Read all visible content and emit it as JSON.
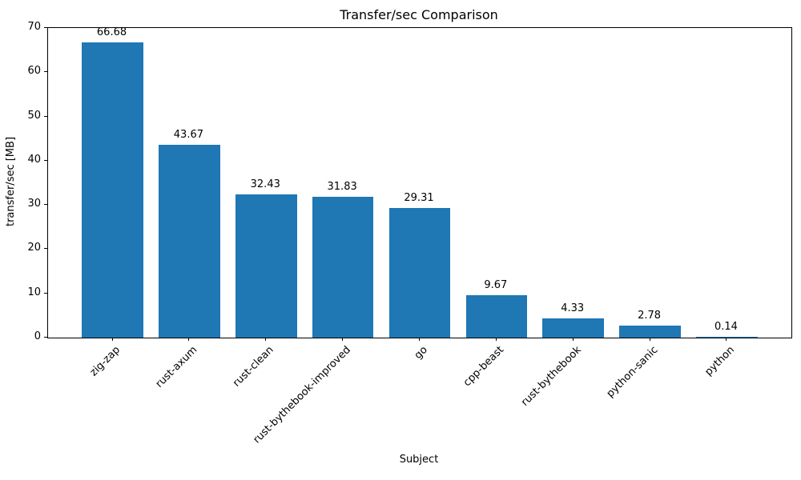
{
  "chart_data": {
    "type": "bar",
    "title": "Transfer/sec Comparison",
    "xlabel": "Subject",
    "ylabel": "transfer/sec [MB]",
    "categories": [
      "zig-zap",
      "rust-axum",
      "rust-clean",
      "rust-bythebook-improved",
      "go",
      "cpp-beast",
      "rust-bythebook",
      "python-sanic",
      "python"
    ],
    "values": [
      66.68,
      43.67,
      32.43,
      31.83,
      29.31,
      9.67,
      4.33,
      2.78,
      0.14
    ],
    "bar_value_labels": [
      "66.68",
      "43.67",
      "32.43",
      "31.83",
      "29.31",
      "9.67",
      "4.33",
      "2.78",
      "0.14"
    ],
    "ylim": [
      0,
      70
    ],
    "yticks": [
      0,
      10,
      20,
      30,
      40,
      50,
      60,
      70
    ],
    "bar_color": "#1f77b4",
    "axis_color": "#000000",
    "background_color": "#ffffff",
    "x_tick_label_rotation_deg": 45,
    "grid": false,
    "legend": "none"
  }
}
